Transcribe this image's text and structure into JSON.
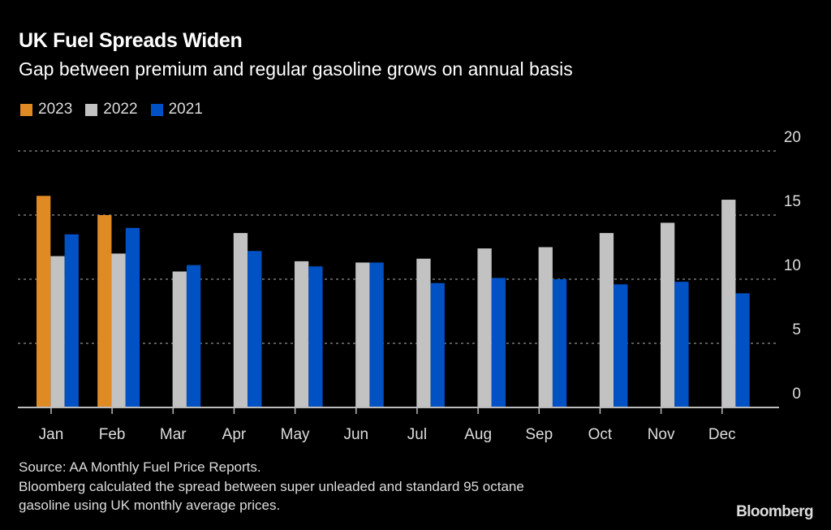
{
  "header": {
    "title": "UK Fuel Spreads Widen",
    "subtitle": "Gap between premium and regular gasoline grows on annual basis"
  },
  "footer": {
    "source": "Source: AA Monthly Fuel Price Reports.",
    "note_line1": "Bloomberg calculated the spread between super unleaded and standard 95 octane",
    "note_line2": "gasoline using UK monthly average prices.",
    "logo": "Bloomberg"
  },
  "chart_data": {
    "type": "bar",
    "title": "UK Fuel Spreads Widen",
    "subtitle": "Gap between premium and regular gasoline grows on annual basis",
    "xlabel": "",
    "ylabel": "",
    "ylim": [
      0,
      20
    ],
    "yticks": [
      0,
      5,
      10,
      15,
      20
    ],
    "ytick_labels": [
      "0",
      "5",
      "10",
      "15",
      "20"
    ],
    "y_axis_side": "right",
    "grid": true,
    "legend_position": "top-left",
    "categories": [
      "Jan",
      "Feb",
      "Mar",
      "Apr",
      "May",
      "Jun",
      "Jul",
      "Aug",
      "Sep",
      "Oct",
      "Nov",
      "Dec"
    ],
    "series": [
      {
        "name": "2023",
        "color": "#e08a24",
        "values": [
          16.5,
          15.0,
          null,
          null,
          null,
          null,
          null,
          null,
          null,
          null,
          null,
          null
        ]
      },
      {
        "name": "2022",
        "color": "#c2c2c2",
        "values": [
          11.8,
          12.0,
          10.6,
          13.6,
          11.4,
          11.3,
          11.6,
          12.4,
          12.5,
          13.6,
          14.4,
          16.2
        ]
      },
      {
        "name": "2021",
        "color": "#0051c3",
        "values": [
          13.5,
          14.0,
          11.1,
          12.2,
          11.0,
          11.3,
          9.7,
          10.1,
          10.0,
          9.6,
          9.8,
          8.9
        ]
      }
    ]
  }
}
